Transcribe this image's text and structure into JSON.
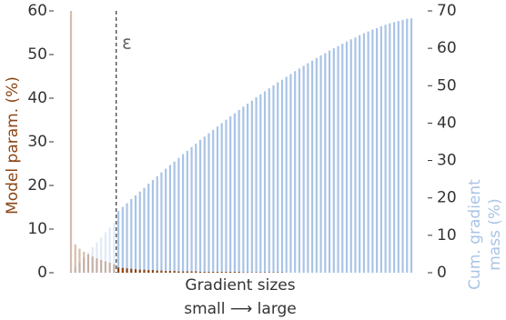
{
  "chart_data": {
    "type": "bar",
    "xlabel": [
      "Gradient sizes",
      "small ⟶ large"
    ],
    "ylabel": "Model param. (%)",
    "ylabel_color": "#8b4513",
    "y2label": [
      "Cum. gradient",
      "mass (%)"
    ],
    "y2label_color": "#a9c4e6",
    "annotation": "ε",
    "threshold_after": 10,
    "faded_opacity": 0.35,
    "ylim": [
      0,
      60
    ],
    "yticks": [
      0,
      10,
      20,
      30,
      40,
      50,
      60
    ],
    "y2lim": [
      0,
      70
    ],
    "y2ticks": [
      0,
      10,
      20,
      30,
      40,
      50,
      60,
      70
    ],
    "series": [
      {
        "color": "#a9c4e6",
        "axis": "y2",
        "values": [
          0.3,
          1.5,
          2.8,
          4.1,
          5.5,
          6.8,
          8.1,
          9.4,
          10.8,
          12.1,
          13.4,
          16.5,
          17.6,
          18.6,
          19.7,
          20.7,
          21.7,
          22.7,
          23.8,
          24.8,
          25.8,
          26.8,
          27.8,
          28.8,
          29.7,
          30.7,
          31.7,
          32.6,
          33.6,
          34.5,
          35.5,
          36.4,
          37.3,
          38.2,
          39.1,
          40.0,
          40.9,
          41.8,
          42.6,
          43.5,
          44.4,
          45.2,
          46.0,
          46.9,
          47.7,
          48.5,
          49.3,
          50.1,
          50.9,
          51.6,
          52.4,
          53.1,
          53.9,
          54.6,
          55.3,
          56.0,
          56.7,
          57.4,
          58.1,
          58.7,
          59.4,
          60.0,
          60.6,
          61.2,
          61.8,
          62.4,
          62.9,
          63.5,
          64.0,
          64.5,
          65.0,
          65.4,
          65.9,
          66.3,
          66.7,
          67.0,
          67.3,
          67.6,
          67.9,
          68.0
        ]
      },
      {
        "color": "#8b4513",
        "axis": "y",
        "values": [
          60,
          6.5,
          5.5,
          4.8,
          4.2,
          3.7,
          3.3,
          2.9,
          2.6,
          2.3,
          2.0,
          1.2,
          1.1,
          1.0,
          0.9,
          0.8,
          0.7,
          0.7,
          0.6,
          0.6,
          0.5,
          0.5,
          0.4,
          0.4,
          0.4,
          0.3,
          0.3,
          0.3,
          0.3,
          0.3,
          0.2,
          0.2,
          0.2,
          0.2,
          0.2,
          0.2,
          0.2,
          0.2,
          0.2,
          0.2,
          0.1,
          0.1,
          0.1,
          0.1,
          0.1,
          0.1,
          0.1,
          0.1,
          0.1,
          0.1,
          0,
          0,
          0,
          0,
          0,
          0,
          0,
          0,
          0,
          0,
          0,
          0,
          0,
          0,
          0,
          0,
          0,
          0,
          0,
          0,
          0,
          0,
          0,
          0,
          0,
          0,
          0,
          0,
          0,
          0
        ]
      }
    ]
  }
}
